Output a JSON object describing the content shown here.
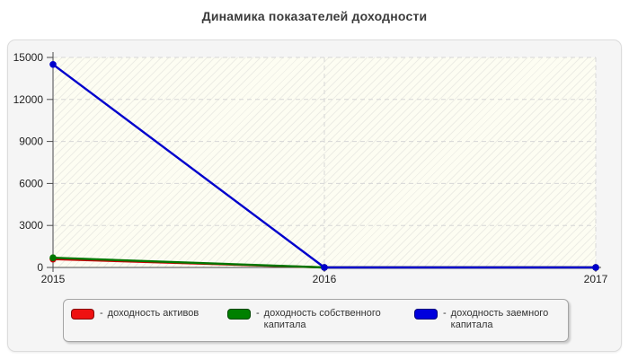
{
  "legend": {
    "separator": "-"
  },
  "chart_data": {
    "type": "line",
    "title": "Динамика показателей доходности",
    "x_categories": [
      "2015",
      "2016",
      "2017"
    ],
    "ylim": [
      0,
      15000
    ],
    "yticks": [
      0,
      3000,
      6000,
      9000,
      12000,
      15000
    ],
    "grid": "dashed horizontal at yticks and dashed vertical at year positions",
    "legend_position": "bottom",
    "plot_background": "#fdfdf2",
    "hatch": "light diagonal hatch in plot area",
    "series": [
      {
        "name": "доходность активов",
        "color": "#cc0000",
        "swatch_color": "#ee1111",
        "values": [
          600,
          0,
          0
        ]
      },
      {
        "name": "доходность собственного капитала",
        "color": "#007700",
        "swatch_color": "#008000",
        "values": [
          690,
          0,
          0
        ]
      },
      {
        "name": "доходность заемного капитала",
        "color": "#0000cc",
        "swatch_color": "#0000dd",
        "values": [
          14500,
          0,
          0
        ]
      }
    ]
  }
}
